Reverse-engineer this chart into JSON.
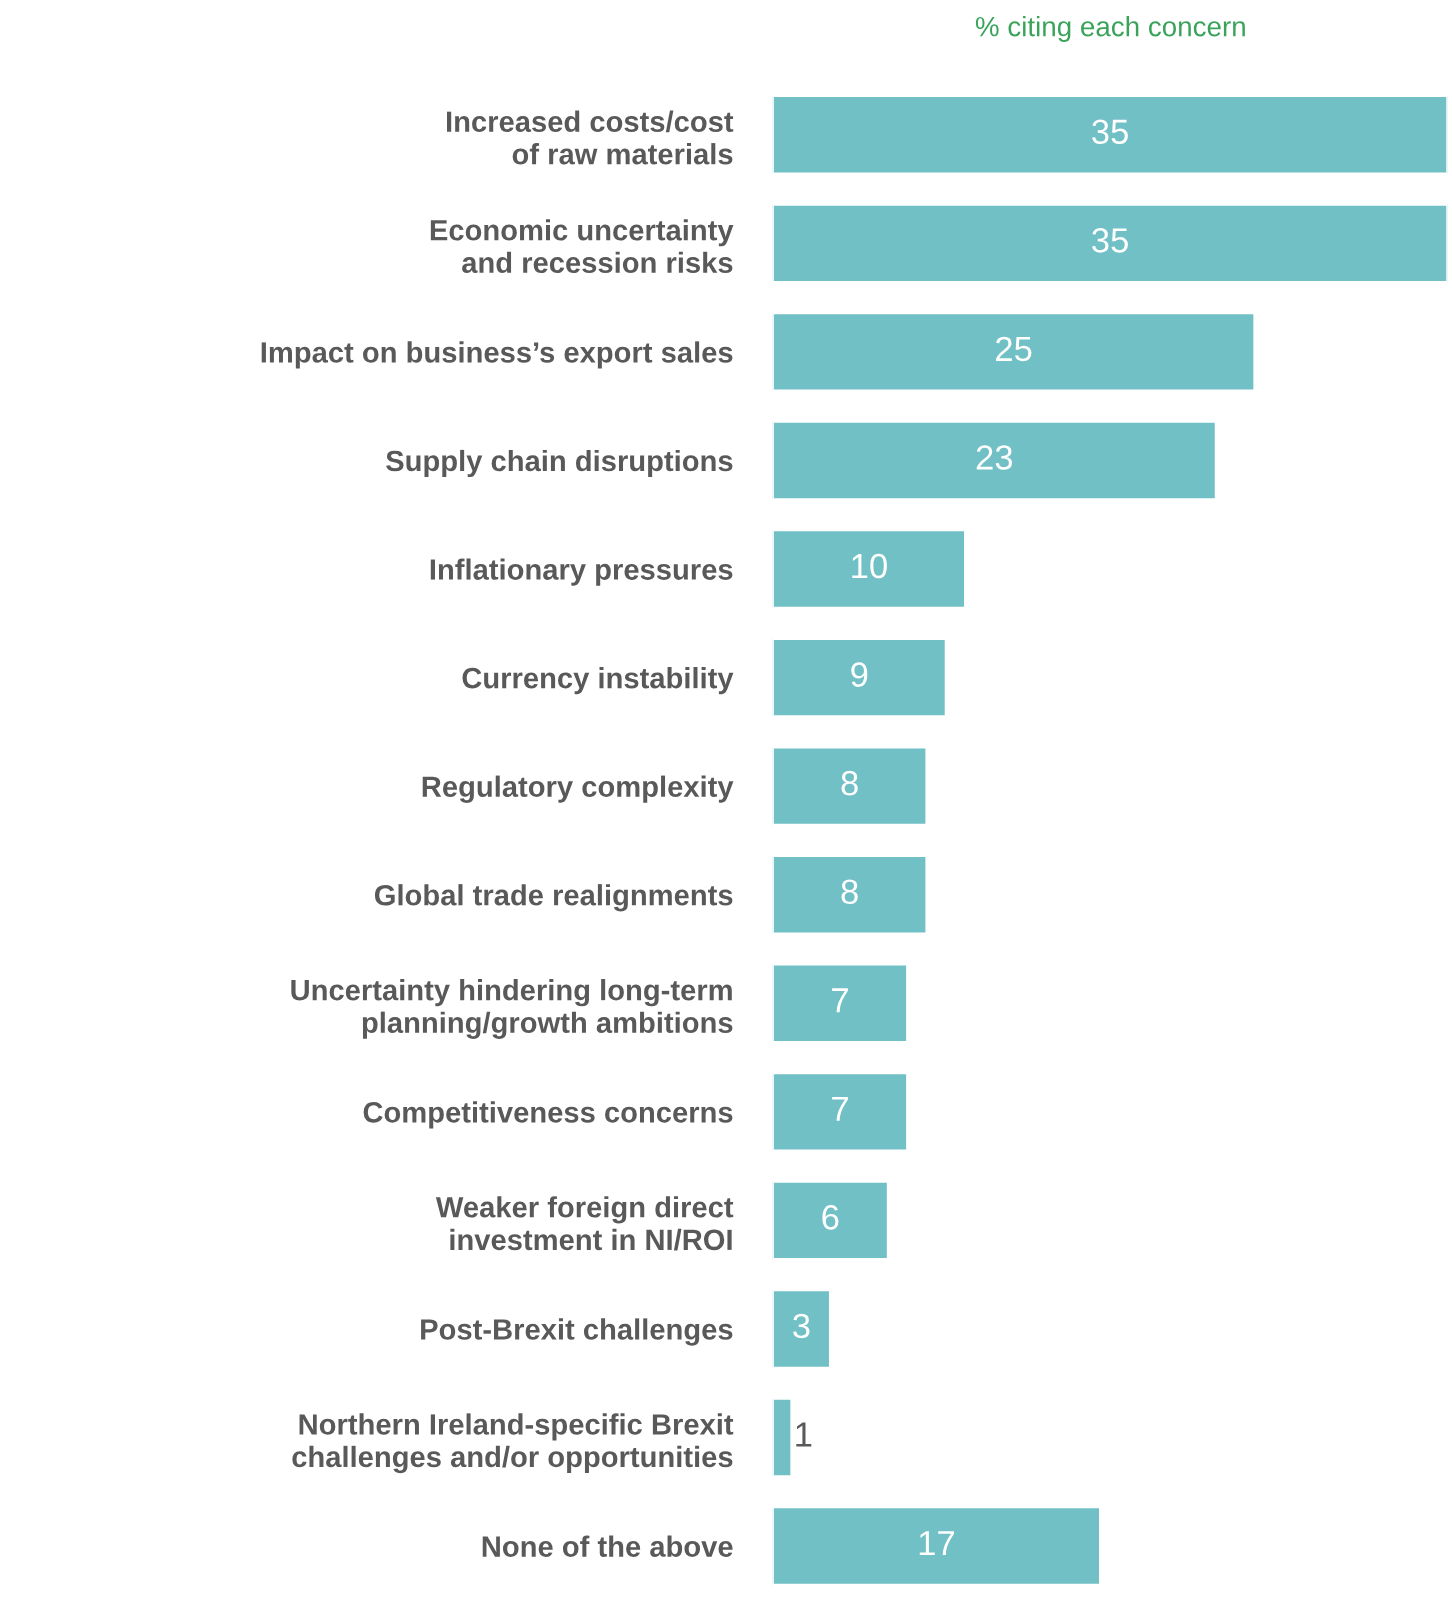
{
  "chart_data": {
    "type": "bar",
    "orientation": "horizontal",
    "subtitle": "% citing each concern",
    "categories": [
      "Increased costs/cost\nof raw materials",
      "Economic uncertainty\nand recession risks",
      "Impact on business’s export sales",
      "Supply chain disruptions",
      "Inflationary pressures",
      "Currency instability",
      "Regulatory complexity",
      "Global trade realignments",
      "Uncertainty hindering long-term\nplanning/growth ambitions",
      "Competitiveness concerns",
      "Weaker foreign direct\ninvestment in NI/ROI",
      "Post-Brexit challenges",
      "Northern Ireland-specific Brexit\nchallenges and/or opportunities",
      "None of the above"
    ],
    "values": [
      35,
      35,
      25,
      23,
      10,
      9,
      8,
      8,
      7,
      7,
      6,
      3,
      1,
      17
    ],
    "color": "#71c0c5",
    "data_labels": true,
    "grid": false,
    "legend": false
  }
}
